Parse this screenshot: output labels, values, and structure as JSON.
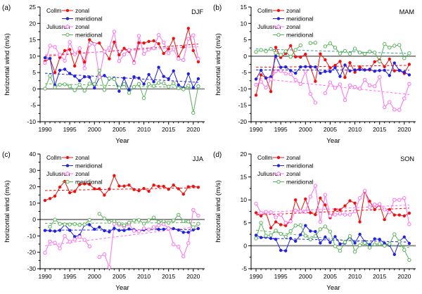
{
  "figure": {
    "ylabel": "horizontal wind (m/s)",
    "xlabel": "Year",
    "sites": [
      "Collm",
      "Juliusruh"
    ],
    "components": [
      "zonal",
      "meridional"
    ],
    "colors": {
      "collm_zonal": "#ee1111",
      "collm_meridional": "#2222dd",
      "juliusruh_zonal": "#ff6ff0",
      "juliusruh_meridional": "#57b357",
      "juliusruh_meridional_trend_teal": "#2f9e9e",
      "zero_line": "#808080",
      "axis": "#000000"
    }
  },
  "chart_data": [
    {
      "type": "line",
      "panel_label": "(a)",
      "season": "DJF",
      "ylim": [
        -10,
        25
      ],
      "ytick_major": 5,
      "ytick_minor": 2.5,
      "xlim": [
        1989,
        2022.3
      ],
      "xticks_major": [
        1990,
        1995,
        2000,
        2005,
        2010,
        2015,
        2020
      ],
      "x_years": {
        "start": 1990,
        "end": 2021,
        "step": 1
      },
      "series": [
        {
          "site": "Collm",
          "component": "zonal",
          "color_key": "collm_zonal",
          "marker": "filled",
          "values": [
            8.4,
            9.3,
            5.0,
            9.6,
            11.7,
            12.0,
            7.0,
            11.3,
            8.2,
            15.0,
            13.8,
            14.0,
            11.5,
            9.2,
            14.3,
            10.4,
            12.4,
            11.5,
            8.2,
            14.1,
            14.0,
            14.5,
            14.7,
            13.8,
            10.8,
            12.2,
            15.4,
            9.7,
            12.8,
            18.5,
            11.7,
            8.3
          ],
          "trend": [
            10.0,
            13.7
          ]
        },
        {
          "site": "Collm",
          "component": "meridional",
          "color_key": "collm_meridional",
          "marker": "filled",
          "values": [
            9.5,
            9.3,
            1.1,
            5.7,
            6.0,
            4.7,
            3.9,
            2.5,
            3.7,
            3.6,
            0.3,
            3.5,
            4.1,
            3.0,
            3.3,
            -0.7,
            3.3,
            -0.3,
            3.7,
            3.3,
            1.5,
            4.4,
            2.2,
            6.6,
            3.8,
            3.1,
            5.5,
            1.2,
            0.3,
            4.6,
            0.4,
            3.1
          ],
          "trend": [
            4.8,
            2.0
          ]
        },
        {
          "site": "Juliusruh",
          "component": "zonal",
          "color_key": "juliusruh_zonal",
          "marker": "open",
          "values": [
            7.9,
            13.2,
            12.8,
            10.4,
            8.6,
            14.3,
            10.6,
            12.4,
            6.3,
            13.5,
            13.7,
            3.6,
            11.4,
            12.5,
            17.5,
            8.5,
            10.5,
            11.9,
            7.9,
            16.2,
            10.7,
            12.0,
            12.4,
            16.5,
            14.2,
            10.9,
            12.1,
            9.2,
            8.8,
            15.3,
            16.4,
            9.2
          ],
          "trend": [
            10.4,
            12.9
          ]
        },
        {
          "site": "Juliusruh",
          "component": "meridional",
          "color_key": "juliusruh_meridional",
          "marker": "open",
          "values": [
            0.1,
            4.0,
            0.5,
            1.3,
            1.4,
            0.8,
            -0.4,
            1.3,
            -0.5,
            1.6,
            1.5,
            5.6,
            -0.3,
            3.2,
            3.0,
            0.3,
            1.5,
            -1.2,
            0.6,
            1.5,
            -2.8,
            1.5,
            0.9,
            1.8,
            1.7,
            0.7,
            1.7,
            0.2,
            -0.1,
            1.0,
            -7.3,
            0.8
          ],
          "trend": [
            1.6,
            0.3
          ]
        }
      ]
    },
    {
      "type": "line",
      "panel_label": "(b)",
      "season": "MAM",
      "ylim": [
        -20,
        15
      ],
      "ytick_major": 5,
      "ytick_minor": 2.5,
      "xlim": [
        1989,
        2022.3
      ],
      "xticks_major": [
        1990,
        1995,
        2000,
        2005,
        2010,
        2015,
        2020
      ],
      "x_years": {
        "start": 1990,
        "end": 2021,
        "step": 1
      },
      "series": [
        {
          "site": "Collm",
          "component": "zonal",
          "color_key": "collm_zonal",
          "marker": "filled",
          "values": [
            -11.9,
            -5.7,
            -6.6,
            -10.8,
            2.7,
            -0.4,
            0.8,
            3.2,
            -0.2,
            -0.3,
            0.6,
            -3.3,
            -7.7,
            0.7,
            -1.1,
            -3.6,
            -2.8,
            -1.6,
            -6.5,
            -2.0,
            -4.9,
            -3.3,
            -4.2,
            -4.2,
            -1.7,
            -1.2,
            -3.2,
            -0.9,
            -4.5,
            -4.3,
            -5.3,
            -2.5
          ],
          "trend": [
            -3.4,
            -2.8
          ]
        },
        {
          "site": "Collm",
          "component": "meridional",
          "color_key": "collm_meridional",
          "marker": "filled",
          "values": [
            -7.0,
            -4.3,
            -6.7,
            -6.3,
            0.0,
            -3.4,
            -3.3,
            -4.4,
            -5.2,
            -3.3,
            -3.2,
            -3.2,
            -3.3,
            -5.2,
            -4.7,
            -4.7,
            -3.5,
            -6.2,
            -2.7,
            -4.5,
            -4.2,
            -4.1,
            -4.2,
            -4.0,
            -4.6,
            -4.4,
            -4.3,
            -5.9,
            -2.1,
            -4.4,
            -4.9,
            -5.7
          ],
          "trend": [
            -4.2,
            -4.3
          ]
        },
        {
          "site": "Juliusruh",
          "component": "zonal",
          "color_key": "juliusruh_zonal",
          "marker": "open",
          "values": [
            -8.7,
            -7.8,
            -9.6,
            -7.1,
            -4.6,
            -4.5,
            -5.3,
            -5.5,
            -7.2,
            -8.5,
            -4.7,
            -11.5,
            -14.2,
            null,
            -11.3,
            -8.0,
            -9.7,
            -8.6,
            -13.4,
            -8.9,
            -9.4,
            -9.9,
            -7.2,
            -8.9,
            -9.2,
            -6.4,
            -15.6,
            -14.0,
            -16.3,
            -16.4,
            -12.9,
            -8.5
          ],
          "trend": [
            -6.7,
            -11.7
          ]
        },
        {
          "site": "Juliusruh",
          "component": "meridional",
          "color_key": "juliusruh_meridional",
          "marker": "open",
          "values": [
            1.3,
            1.9,
            1.5,
            2.2,
            1.0,
            0.4,
            1.5,
            -0.2,
            1.9,
            3.3,
            null,
            4.0,
            4.1,
            null,
            3.0,
            3.9,
            2.6,
            0.8,
            1.6,
            0.7,
            2.3,
            1.1,
            0.7,
            1.4,
            1.1,
            -1.6,
            3.7,
            2.6,
            3.2,
            3.4,
            -0.6,
            0.9
          ],
          "trend": [
            2.2,
            0.8
          ],
          "trend_color_key": "juliusruh_meridional_trend_teal"
        }
      ]
    },
    {
      "type": "line",
      "panel_label": "(c)",
      "season": "JJA",
      "ylim": [
        -30,
        40
      ],
      "ytick_major": 10,
      "ytick_minor": 5,
      "xlim": [
        1989,
        2022.3
      ],
      "xticks_major": [
        1990,
        1995,
        2000,
        2005,
        2010,
        2015,
        2020
      ],
      "x_years": {
        "start": 1990,
        "end": 2021,
        "step": 1
      },
      "series": [
        {
          "site": "Collm",
          "component": "zonal",
          "color_key": "collm_zonal",
          "marker": "filled",
          "values": [
            11.7,
            12.8,
            14.3,
            19.8,
            23.3,
            16.4,
            17.1,
            21.3,
            21.8,
            21.5,
            18.8,
            18.8,
            14.9,
            18.6,
            26.8,
            20.5,
            20.4,
            21.0,
            18.3,
            17.6,
            19.0,
            17.3,
            21.0,
            20.3,
            20.3,
            18.5,
            21.0,
            18.8,
            15.5,
            20.0,
            20.3,
            19.7
          ],
          "trend": [
            17.7,
            19.4
          ]
        },
        {
          "site": "Collm",
          "component": "meridional",
          "color_key": "collm_meridional",
          "marker": "filled",
          "values": [
            -6.7,
            -6.8,
            -7.1,
            -6.6,
            -3.1,
            -6.6,
            -10.4,
            -9.6,
            -3.3,
            -3.2,
            -5.9,
            -4.6,
            -6.8,
            -7.5,
            -5.3,
            -6.6,
            -6.7,
            -5.8,
            -6.2,
            -7.2,
            -6.3,
            -5.9,
            -4.8,
            -6.0,
            -5.9,
            -5.2,
            -5.5,
            -6.4,
            -7.8,
            -7.8,
            -6.3,
            -5.5
          ],
          "trend": [
            -6.5,
            -6.1
          ]
        },
        {
          "site": "Juliusruh",
          "component": "zonal",
          "color_key": "juliusruh_zonal",
          "marker": "open",
          "values": [
            -20.2,
            -13.4,
            -14.2,
            -17.6,
            -10.1,
            -13.6,
            -12.1,
            -10.6,
            -12.4,
            -16.4,
            null,
            -22.9,
            -21.2,
            -29.1,
            -2.7,
            -3.3,
            -4.4,
            -2.9,
            -6.9,
            -7.1,
            -5.4,
            -6.1,
            -4.6,
            -3.6,
            -2.9,
            -5.4,
            -15.2,
            -16.6,
            -22.5,
            -14.4,
            5.9,
            2.4
          ],
          "trend": [
            -16.0,
            -4.3
          ]
        },
        {
          "site": "Juliusruh",
          "component": "meridional",
          "color_key": "juliusruh_meridional",
          "marker": "open",
          "values": [
            null,
            -4.4,
            0.0,
            -2.6,
            -2.9,
            -3.0,
            -2.8,
            -3.3,
            -3.0,
            -0.2,
            null,
            3.5,
            0.6,
            -1.5,
            -1.0,
            -2.5,
            -3.5,
            -1.9,
            -0.5,
            -0.3,
            -2.5,
            -0.4,
            1.2,
            -1.5,
            -1.0,
            -2.0,
            -0.5,
            2.9,
            -0.9,
            -1.2,
            -4.7,
            -2.6
          ],
          "trend": [
            -2.3,
            -1.9
          ]
        }
      ]
    },
    {
      "type": "line",
      "panel_label": "(d)",
      "season": "SON",
      "ylim": [
        -5,
        20
      ],
      "ytick_major": 5,
      "ytick_minor": 2.5,
      "xlim": [
        1989,
        2022.3
      ],
      "xticks_major": [
        1990,
        1995,
        2000,
        2005,
        2010,
        2015,
        2020
      ],
      "x_years": {
        "start": 1990,
        "end": 2021,
        "step": 1
      },
      "series": [
        {
          "site": "Collm",
          "component": "zonal",
          "color_key": "collm_zonal",
          "marker": "filled",
          "values": [
            7.2,
            6.5,
            7.3,
            3.9,
            5.2,
            4.6,
            4.4,
            5.5,
            10.0,
            7.4,
            10.2,
            7.2,
            6.8,
            10.4,
            8.9,
            6.1,
            7.9,
            7.8,
            8.7,
            9.8,
            9.3,
            5.2,
            11.8,
            9.7,
            7.9,
            9.0,
            5.7,
            7.9,
            6.7,
            6.7,
            6.5,
            7.1
          ],
          "trend": [
            6.7,
            8.2
          ]
        },
        {
          "site": "Collm",
          "component": "meridional",
          "color_key": "collm_meridional",
          "marker": "filled",
          "values": [
            2.3,
            1.8,
            1.9,
            1.6,
            1.4,
            -1.0,
            -1.1,
            1.6,
            1.0,
            2.4,
            4.4,
            3.2,
            3.1,
            0.6,
            1.9,
            0.7,
            2.0,
            0.4,
            0.6,
            2.0,
            0.6,
            2.5,
            0.9,
            0.2,
            1.5,
            1.4,
            0.5,
            0.1,
            -1.9,
            1.0,
            1.9,
            0.5
          ],
          "trend": [
            1.7,
            0.8
          ]
        },
        {
          "site": "Juliusruh",
          "component": "zonal",
          "color_key": "juliusruh_zonal",
          "marker": "open",
          "values": [
            9.2,
            7.2,
            7.4,
            7.3,
            6.2,
            6.8,
            5.0,
            5.3,
            7.7,
            7.5,
            7.4,
            10.7,
            13.1,
            5.2,
            11.1,
            6.5,
            6.8,
            7.0,
            6.8,
            6.8,
            7.5,
            10.4,
            12.0,
            8.4,
            9.0,
            9.1,
            7.9,
            7.3,
            10.0,
            10.0,
            10.4,
            4.7
          ],
          "trend": [
            7.2,
            8.9
          ]
        },
        {
          "site": "Juliusruh",
          "component": "meridional",
          "color_key": "juliusruh_meridional",
          "marker": "open",
          "values": [
            1.6,
            5.0,
            2.2,
            2.3,
            3.3,
            2.6,
            2.0,
            3.2,
            4.4,
            4.5,
            2.2,
            1.4,
            2.1,
            3.6,
            4.2,
            3.1,
            -0.1,
            -1.1,
            0.8,
            2.1,
            -1.3,
            0.1,
            0.6,
            -0.4,
            0.3,
            0.4,
            0.0,
            0.4,
            2.5,
            0.9,
            -0.9,
            -3.1
          ],
          "trend": [
            3.4,
            -0.4
          ]
        }
      ]
    }
  ]
}
